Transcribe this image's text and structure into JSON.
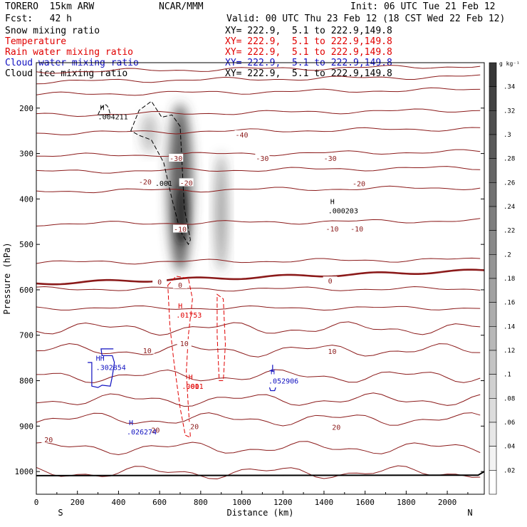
{
  "header": {
    "model": "TORERO  15km ARW",
    "center": "NCAR/MMM",
    "init": "Init: 06 UTC Tue 21 Feb 12",
    "fcst": "Fcst:   42 h",
    "valid": "Valid: 00 UTC Thu 23 Feb 12 (18 CST Wed 22 Feb 12)",
    "fields": [
      {
        "label": "Snow mixing ratio",
        "xy": "XY= 222.9,  5.1 to 222.9,149.8",
        "color": "#000000"
      },
      {
        "label": "Temperature",
        "xy": "XY= 222.9,  5.1 to 222.9,149.8",
        "color": "#e00000"
      },
      {
        "label": "Rain water mixing ratio",
        "xy": "XY= 222.9,  5.1 to 222.9,149.8",
        "color": "#e00000"
      },
      {
        "label": "Cloud water mixing ratio",
        "xy": "XY= 222.9,  5.1 to 222.9,149.8",
        "color": "#1010c0"
      },
      {
        "label": "Cloud ice mixing ratio",
        "xy": "XY= 222.9,  5.1 to 222.9,149.8",
        "color": "#000000"
      }
    ]
  },
  "chart_data": {
    "type": "contour",
    "xlabel": "Distance (km)",
    "ylabel": "Pressure (hPa)",
    "xlim": [
      0,
      2180
    ],
    "ylim": [
      1050,
      100
    ],
    "x_ticks": [
      "0",
      "200",
      "400",
      "600",
      "800",
      "1000",
      "1200",
      "1400",
      "1600",
      "1800",
      "2000"
    ],
    "x_tick_values": [
      0,
      200,
      400,
      600,
      800,
      1000,
      1200,
      1400,
      1600,
      1800,
      2000
    ],
    "y_ticks": [
      "200",
      "300",
      "400",
      "500",
      "600",
      "700",
      "800",
      "900",
      "1000"
    ],
    "y_tick_values": [
      200,
      300,
      400,
      500,
      600,
      700,
      800,
      900,
      1000
    ],
    "x_end_labels": {
      "left": "S",
      "right": "N"
    },
    "colorbar": {
      "unit": "g kg⁻¹",
      "labels": [
        ".34",
        ".32",
        ".3",
        ".28",
        ".26",
        ".24",
        ".22",
        ".2",
        ".18",
        ".16",
        ".14",
        ".12",
        ".1",
        ".08",
        ".06",
        ".04",
        ".02"
      ],
      "values": [
        0.34,
        0.32,
        0.3,
        0.28,
        0.26,
        0.24,
        0.22,
        0.2,
        0.18,
        0.16,
        0.14,
        0.12,
        0.1,
        0.08,
        0.06,
        0.04,
        0.02
      ]
    },
    "temperature_isotherms_hpa": [
      120,
      142,
      170,
      215,
      255,
      305,
      340,
      383,
      455,
      540,
      598,
      640,
      685,
      733,
      790,
      842,
      885,
      948,
      1002
    ],
    "zero_isotherm_hpa": 586,
    "isotherm_labels": [
      {
        "text": "-40",
        "x": 1000,
        "p": 258
      },
      {
        "text": "-30",
        "x": 680,
        "p": 310
      },
      {
        "text": "-30",
        "x": 1100,
        "p": 310
      },
      {
        "text": "-30",
        "x": 1430,
        "p": 310
      },
      {
        "text": "-20",
        "x": 530,
        "p": 362
      },
      {
        "text": "-20",
        "x": 730,
        "p": 364
      },
      {
        "text": "-20",
        "x": 1570,
        "p": 366
      },
      {
        "text": "-10",
        "x": 700,
        "p": 466
      },
      {
        "text": "-10",
        "x": 1440,
        "p": 465
      },
      {
        "text": "-10",
        "x": 1560,
        "p": 465
      },
      {
        "text": "0",
        "x": 600,
        "p": 582
      },
      {
        "text": "0",
        "x": 700,
        "p": 589
      },
      {
        "text": "0",
        "x": 1430,
        "p": 580
      },
      {
        "text": "10",
        "x": 540,
        "p": 733
      },
      {
        "text": "10",
        "x": 720,
        "p": 718
      },
      {
        "text": "10",
        "x": 1440,
        "p": 735
      },
      {
        "text": "20",
        "x": 60,
        "p": 929
      },
      {
        "text": "20",
        "x": 580,
        "p": 908
      },
      {
        "text": "20",
        "x": 770,
        "p": 900
      },
      {
        "text": "20",
        "x": 1460,
        "p": 902
      }
    ],
    "extrema": [
      {
        "mark": "H",
        "value": ".004211",
        "x": 300,
        "p": 218,
        "color": "#000000"
      },
      {
        "mark": "H",
        "value": ".000203",
        "x": 1420,
        "p": 425,
        "color": "#000000"
      },
      {
        "mark": "H",
        "value": ".01753",
        "x": 680,
        "p": 655,
        "color": "#e00000"
      },
      {
        "mark": "H",
        "value": ".001",
        "x": 730,
        "p": 812,
        "color": "#e00000"
      },
      {
        "mark": "H",
        "value": ".052906",
        "x": 1130,
        "p": 800,
        "color": "#1010c0"
      },
      {
        "mark": "H",
        "value": ".026274",
        "x": 440,
        "p": 912,
        "color": "#1010c0"
      },
      {
        "mark": "HH",
        "value": ".302854",
        "x": 290,
        "p": 770,
        "color": "#1010c0"
      }
    ],
    "contour_labels": [
      {
        "text": ".001",
        "x": 620,
        "p": 365,
        "color": "#000000"
      },
      {
        "text": ".001",
        "x": 750,
        "p": 812,
        "color": "#e00000"
      }
    ],
    "snow_maxima": [
      {
        "x_center": 700,
        "p_top": 190,
        "p_bottom": 560,
        "max_gkg": 0.34
      },
      {
        "x_center": 900,
        "p_top": 300,
        "p_bottom": 560,
        "max_gkg": 0.16
      },
      {
        "x_center": 550,
        "p_top": 210,
        "p_bottom": 300,
        "max_gkg": 0.08
      }
    ]
  }
}
